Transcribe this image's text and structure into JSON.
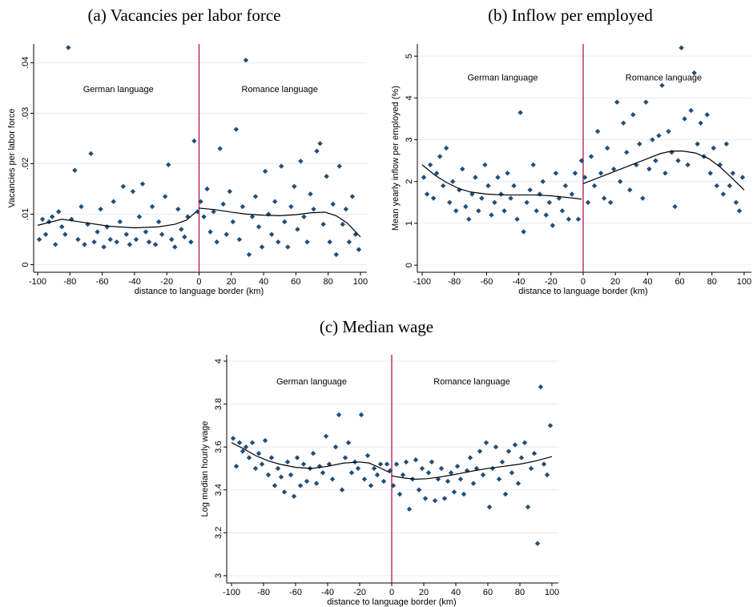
{
  "chart_data": [
    {
      "type": "scatter",
      "title": "(a)  Vacancies per labor force",
      "xlabel": "distance to language border (km)",
      "ylabel": "Vacancies per labor force",
      "annotations": [
        "German language",
        "Romance language"
      ],
      "vline": 0,
      "vline_color": "#b0154f",
      "grid": true,
      "xlim": [
        -102.5,
        104
      ],
      "xticks": [
        -100,
        -80,
        -60,
        -40,
        -20,
        0,
        20,
        40,
        60,
        80,
        100
      ],
      "ylim": [
        -0.0015,
        0.0437
      ],
      "yticks": [
        0,
        {
          "value": 0.01,
          "label": ".01"
        },
        {
          "value": 0.02,
          "label": ".02"
        },
        {
          "value": 0.03,
          "label": ".03"
        },
        {
          "value": 0.04,
          "label": ".04"
        }
      ],
      "series": [
        {
          "type": "scatter",
          "color": "#1f4e79",
          "x": [
            -99,
            -97,
            -95,
            -93,
            -91,
            -89,
            -87,
            -85,
            -83,
            -81,
            -79,
            -77,
            -75,
            -73,
            -71,
            -69,
            -67,
            -65,
            -63,
            -61,
            -59,
            -57,
            -55,
            -53,
            -51,
            -49,
            -47,
            -45,
            -43,
            -41,
            -39,
            -37,
            -35,
            -33,
            -31,
            -29,
            -27,
            -25,
            -23,
            -21,
            -19,
            -17,
            -15,
            -13,
            -11,
            -9,
            -7,
            -5,
            -3,
            -1,
            1,
            3,
            5,
            7,
            9,
            11,
            13,
            15,
            17,
            19,
            21,
            23,
            25,
            27,
            29,
            31,
            33,
            35,
            37,
            39,
            41,
            43,
            45,
            47,
            49,
            51,
            53,
            55,
            57,
            59,
            61,
            63,
            65,
            67,
            69,
            71,
            73,
            75,
            77,
            79,
            81,
            83,
            85,
            87,
            89,
            91,
            93,
            95,
            97,
            99
          ],
          "values": [
            0.005,
            0.009,
            0.006,
            0.0085,
            0.0095,
            0.004,
            0.0105,
            0.0075,
            0.006,
            0.043,
            0.009,
            0.0187,
            0.005,
            0.0115,
            0.004,
            0.008,
            0.022,
            0.0045,
            0.0065,
            0.011,
            0.0035,
            0.0075,
            0.005,
            0.0125,
            0.0045,
            0.0085,
            0.0155,
            0.006,
            0.004,
            0.0145,
            0.005,
            0.0095,
            0.016,
            0.0065,
            0.0045,
            0.0115,
            0.004,
            0.0085,
            0.006,
            0.0135,
            0.0198,
            0.005,
            0.0035,
            0.011,
            0.007,
            0.0055,
            0.0095,
            0.0045,
            0.0245,
            0.0105,
            0.0125,
            0.0095,
            0.015,
            0.0065,
            0.0105,
            0.0045,
            0.023,
            0.012,
            0.006,
            0.0145,
            0.0085,
            0.0268,
            0.005,
            0.0115,
            0.0405,
            0.002,
            0.0095,
            0.0135,
            0.0075,
            0.0035,
            0.0185,
            0.01,
            0.006,
            0.0125,
            0.0045,
            0.0195,
            0.0085,
            0.0035,
            0.0115,
            0.0155,
            0.007,
            0.0205,
            0.0095,
            0.0045,
            0.014,
            0.011,
            0.0225,
            0.024,
            0.008,
            0.0175,
            0.0045,
            0.012,
            0.002,
            0.0195,
            0.008,
            0.011,
            0.0045,
            0.0135,
            0.006,
            0.003
          ]
        },
        {
          "type": "line",
          "color": "#000000",
          "x": [
            -100,
            -85,
            -70,
            -55,
            -40,
            -25,
            -15,
            -8,
            -2
          ],
          "values": [
            0.0078,
            0.009,
            0.0083,
            0.0076,
            0.0073,
            0.0075,
            0.008,
            0.0088,
            0.0104
          ]
        },
        {
          "type": "line",
          "color": "#000000",
          "x": [
            0,
            10,
            20,
            30,
            40,
            50,
            60,
            70,
            78,
            85,
            92,
            100
          ],
          "values": [
            0.0112,
            0.0109,
            0.0104,
            0.01,
            0.0098,
            0.0097,
            0.0099,
            0.0103,
            0.0104,
            0.0097,
            0.0082,
            0.0055
          ]
        }
      ]
    },
    {
      "type": "scatter",
      "title": "(b)  Inflow per employed",
      "xlabel": "distance to language border (km)",
      "ylabel": "Mean yearly inflow per employed (%)",
      "annotations": [
        "German language",
        "Romance language"
      ],
      "vline": 0,
      "vline_color": "#b0154f",
      "grid": true,
      "xlim": [
        -103,
        104.5
      ],
      "xticks": [
        -100,
        -80,
        -60,
        -40,
        -20,
        0,
        20,
        40,
        60,
        80,
        100
      ],
      "ylim": [
        -0.17,
        5.29
      ],
      "yticks": [
        0,
        1,
        2,
        3,
        4,
        5
      ],
      "series": [
        {
          "type": "scatter",
          "color": "#1f4e79",
          "x": [
            -99,
            -97,
            -95,
            -93,
            -91,
            -89,
            -87,
            -85,
            -83,
            -81,
            -79,
            -77,
            -75,
            -73,
            -71,
            -69,
            -67,
            -65,
            -63,
            -61,
            -59,
            -57,
            -55,
            -53,
            -51,
            -49,
            -47,
            -45,
            -43,
            -41,
            -39,
            -37,
            -35,
            -33,
            -31,
            -29,
            -27,
            -25,
            -23,
            -21,
            -19,
            -17,
            -15,
            -13,
            -11,
            -9,
            -7,
            -5,
            -3,
            -1,
            1,
            3,
            5,
            7,
            9,
            11,
            13,
            15,
            17,
            19,
            21,
            23,
            25,
            27,
            29,
            31,
            33,
            35,
            37,
            39,
            41,
            43,
            45,
            47,
            49,
            51,
            53,
            55,
            57,
            59,
            61,
            63,
            65,
            67,
            69,
            71,
            73,
            75,
            77,
            79,
            81,
            83,
            85,
            87,
            89,
            91,
            93,
            95,
            97,
            99
          ],
          "values": [
            2.1,
            1.7,
            2.4,
            1.6,
            2.2,
            2.6,
            1.9,
            2.8,
            1.5,
            2.0,
            1.3,
            1.8,
            2.3,
            1.4,
            1.1,
            1.7,
            2.1,
            1.3,
            1.6,
            2.4,
            1.9,
            1.2,
            1.5,
            2.1,
            1.7,
            1.3,
            2.2,
            1.6,
            1.9,
            1.1,
            3.65,
            0.8,
            1.5,
            1.8,
            2.4,
            1.3,
            1.7,
            2.0,
            1.2,
            1.5,
            0.95,
            2.2,
            1.6,
            1.3,
            1.9,
            1.1,
            1.7,
            2.2,
            1.1,
            2.5,
            2.1,
            1.5,
            2.6,
            1.9,
            3.2,
            2.2,
            1.6,
            2.8,
            1.5,
            2.3,
            3.9,
            2.0,
            3.4,
            2.7,
            1.8,
            3.6,
            2.4,
            2.9,
            1.6,
            3.9,
            2.3,
            3.0,
            2.5,
            3.1,
            4.3,
            2.2,
            3.2,
            2.7,
            1.4,
            2.5,
            5.2,
            3.5,
            2.4,
            3.7,
            4.6,
            2.9,
            3.4,
            2.6,
            3.6,
            2.2,
            2.8,
            1.9,
            2.4,
            1.7,
            2.9,
            1.9,
            2.2,
            1.5,
            1.3,
            2.1
          ]
        },
        {
          "type": "line",
          "color": "#000000",
          "x": [
            -100,
            -92,
            -85,
            -77,
            -70,
            -60,
            -50,
            -40,
            -30,
            -20,
            -10,
            -1
          ],
          "values": [
            2.4,
            2.15,
            1.98,
            1.83,
            1.75,
            1.7,
            1.68,
            1.68,
            1.68,
            1.66,
            1.62,
            1.58
          ]
        },
        {
          "type": "line",
          "color": "#000000",
          "x": [
            0,
            10,
            20,
            30,
            40,
            48,
            55,
            62,
            70,
            78,
            85,
            92,
            100
          ],
          "values": [
            1.95,
            2.1,
            2.25,
            2.4,
            2.55,
            2.67,
            2.73,
            2.73,
            2.68,
            2.55,
            2.35,
            2.1,
            1.8
          ]
        }
      ]
    },
    {
      "type": "scatter",
      "title": "(c)  Median wage",
      "xlabel": "distance to language border (km)",
      "ylabel": "Log median hourly wage",
      "annotations": [
        "German language",
        "Romance language"
      ],
      "vline": 0,
      "vline_color": "#b0154f",
      "grid": true,
      "xlim": [
        -103,
        104
      ],
      "xticks": [
        -100,
        -80,
        -60,
        -40,
        -20,
        0,
        20,
        40,
        60,
        80,
        100
      ],
      "ylim": [
        2.966,
        4.03
      ],
      "yticks": [
        3,
        3.2,
        3.4,
        3.6,
        3.8,
        4
      ],
      "series": [
        {
          "type": "scatter",
          "color": "#1f4e79",
          "x": [
            -99,
            -97,
            -95,
            -93,
            -91,
            -89,
            -87,
            -85,
            -83,
            -81,
            -79,
            -77,
            -75,
            -73,
            -71,
            -69,
            -67,
            -65,
            -63,
            -61,
            -59,
            -57,
            -55,
            -53,
            -51,
            -49,
            -47,
            -45,
            -43,
            -41,
            -39,
            -37,
            -35,
            -33,
            -31,
            -29,
            -27,
            -25,
            -23,
            -21,
            -19,
            -17,
            -15,
            -13,
            -11,
            -9,
            -7,
            -5,
            -3,
            -1,
            1,
            3,
            5,
            7,
            9,
            11,
            13,
            15,
            17,
            19,
            21,
            23,
            25,
            27,
            29,
            31,
            33,
            35,
            37,
            39,
            41,
            43,
            45,
            47,
            49,
            51,
            53,
            55,
            57,
            59,
            61,
            63,
            65,
            67,
            69,
            71,
            73,
            75,
            77,
            79,
            81,
            83,
            85,
            87,
            89,
            91,
            93,
            95,
            97,
            99
          ],
          "values": [
            3.64,
            3.51,
            3.62,
            3.58,
            3.6,
            3.55,
            3.62,
            3.5,
            3.57,
            3.52,
            3.63,
            3.47,
            3.55,
            3.42,
            3.5,
            3.46,
            3.39,
            3.53,
            3.47,
            3.37,
            3.55,
            3.42,
            3.52,
            3.44,
            3.5,
            3.57,
            3.43,
            3.51,
            3.48,
            3.65,
            3.52,
            3.45,
            3.6,
            3.75,
            3.4,
            3.55,
            3.62,
            3.48,
            3.53,
            3.5,
            3.75,
            3.45,
            3.56,
            3.42,
            3.5,
            3.47,
            3.52,
            3.44,
            3.52,
            3.49,
            3.42,
            3.52,
            3.38,
            3.47,
            3.53,
            3.31,
            3.45,
            3.54,
            3.4,
            3.5,
            3.36,
            3.48,
            3.53,
            3.35,
            3.45,
            3.5,
            3.36,
            3.44,
            3.48,
            3.39,
            3.51,
            3.45,
            3.38,
            3.49,
            3.55,
            3.43,
            3.5,
            3.58,
            3.47,
            3.62,
            3.32,
            3.5,
            3.6,
            3.45,
            3.53,
            3.38,
            3.58,
            3.48,
            3.61,
            3.43,
            3.55,
            3.62,
            3.32,
            3.5,
            3.57,
            3.15,
            3.88,
            3.52,
            3.47,
            3.7
          ]
        },
        {
          "type": "line",
          "color": "#000000",
          "x": [
            -100,
            -92,
            -85,
            -77,
            -70,
            -60,
            -50,
            -40,
            -30,
            -20,
            -14,
            -8,
            -1
          ],
          "values": [
            3.62,
            3.59,
            3.56,
            3.535,
            3.52,
            3.505,
            3.5,
            3.51,
            3.525,
            3.53,
            3.525,
            3.505,
            3.48
          ]
        },
        {
          "type": "line",
          "color": "#000000",
          "x": [
            0,
            8,
            15,
            22,
            30,
            38,
            45,
            52,
            60,
            70,
            80,
            90,
            100
          ],
          "values": [
            3.465,
            3.455,
            3.45,
            3.452,
            3.46,
            3.47,
            3.48,
            3.49,
            3.5,
            3.51,
            3.52,
            3.535,
            3.555
          ]
        }
      ]
    }
  ]
}
